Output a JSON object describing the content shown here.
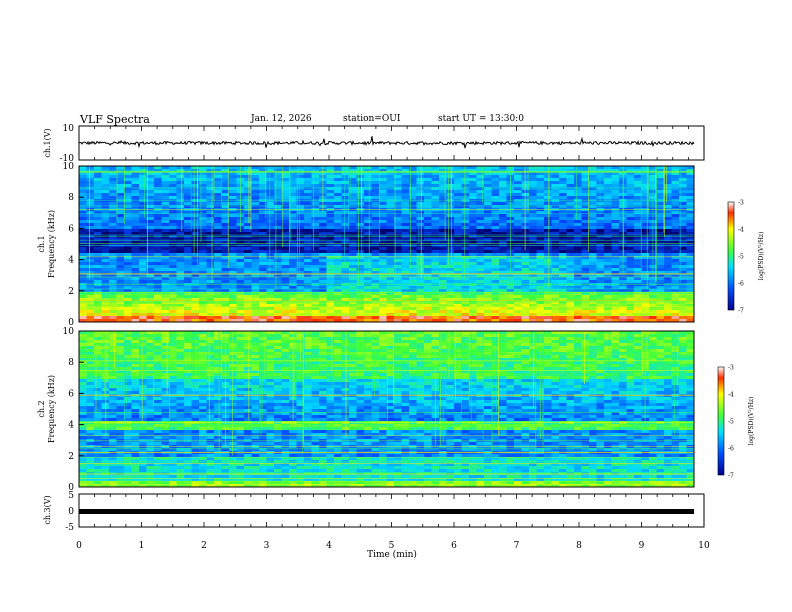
{
  "header": {
    "title": "VLF Spectra",
    "date": "Jan. 12, 2026",
    "station": "station=OUI",
    "start": "start UT = 13:30:0"
  },
  "chart_data": [
    {
      "type": "line",
      "panel": "ch1-waveform",
      "ylabel": "ch.1(V)",
      "ylim": [
        -10,
        10
      ],
      "ytick_labels": [
        "10",
        "-10"
      ],
      "description_values": {
        "baseline": 0
      }
    },
    {
      "type": "heatmap",
      "panel": "ch1-spectrogram",
      "ylabel_line1": "ch.1",
      "ylabel_line2": "Frequency (kHz)",
      "ylim": [
        0,
        10
      ],
      "ytick_labels": [
        "0",
        "2",
        "4",
        "6",
        "8",
        "10"
      ],
      "colorbar": {
        "label": "log(PSD)(V²/Hz)",
        "range": [
          -7,
          -3
        ],
        "tick_labels": [
          "-3",
          "-4",
          "-5",
          "-6",
          "-7"
        ]
      }
    },
    {
      "type": "heatmap",
      "panel": "ch2-spectrogram",
      "ylabel_line1": "ch.2",
      "ylabel_line2": "Frequency (kHz)",
      "ylim": [
        0,
        10
      ],
      "ytick_labels": [
        "0",
        "2",
        "4",
        "6",
        "8",
        "10"
      ],
      "colorbar": {
        "label": "log(PSD)(V²/Hz)",
        "range": [
          -7,
          -3
        ],
        "tick_labels": [
          "-3",
          "-4",
          "-5",
          "-6",
          "-7"
        ]
      }
    },
    {
      "type": "line",
      "panel": "ch3-waveform",
      "ylabel": "ch.3(V)",
      "ylim": [
        -5,
        5
      ],
      "ytick_labels": [
        "5",
        "0",
        "-5"
      ],
      "description_values": {
        "baseline": -0.5
      }
    }
  ],
  "xaxis": {
    "label": "Time (min)",
    "range": [
      0,
      10
    ],
    "tick_labels": [
      "0",
      "1",
      "2",
      "3",
      "4",
      "5",
      "6",
      "7",
      "8",
      "9",
      "10"
    ]
  }
}
